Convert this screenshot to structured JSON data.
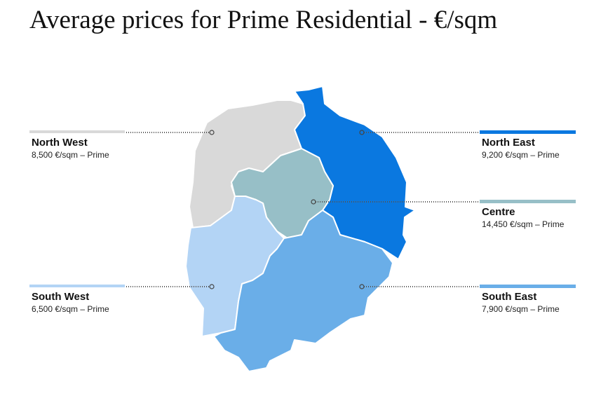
{
  "title": "Average prices for Prime Residential - €/sqm",
  "regions": [
    {
      "name": "North West",
      "price": "8,500 €/sqm – Prime"
    },
    {
      "name": "North East",
      "price": "9,200 €/sqm – Prime"
    },
    {
      "name": "Centre",
      "price": "14,450 €/sqm – Prime"
    },
    {
      "name": "South West",
      "price": "6,500 €/sqm – Prime"
    },
    {
      "name": "South East",
      "price": "7,900 €/sqm – Prime"
    }
  ]
}
